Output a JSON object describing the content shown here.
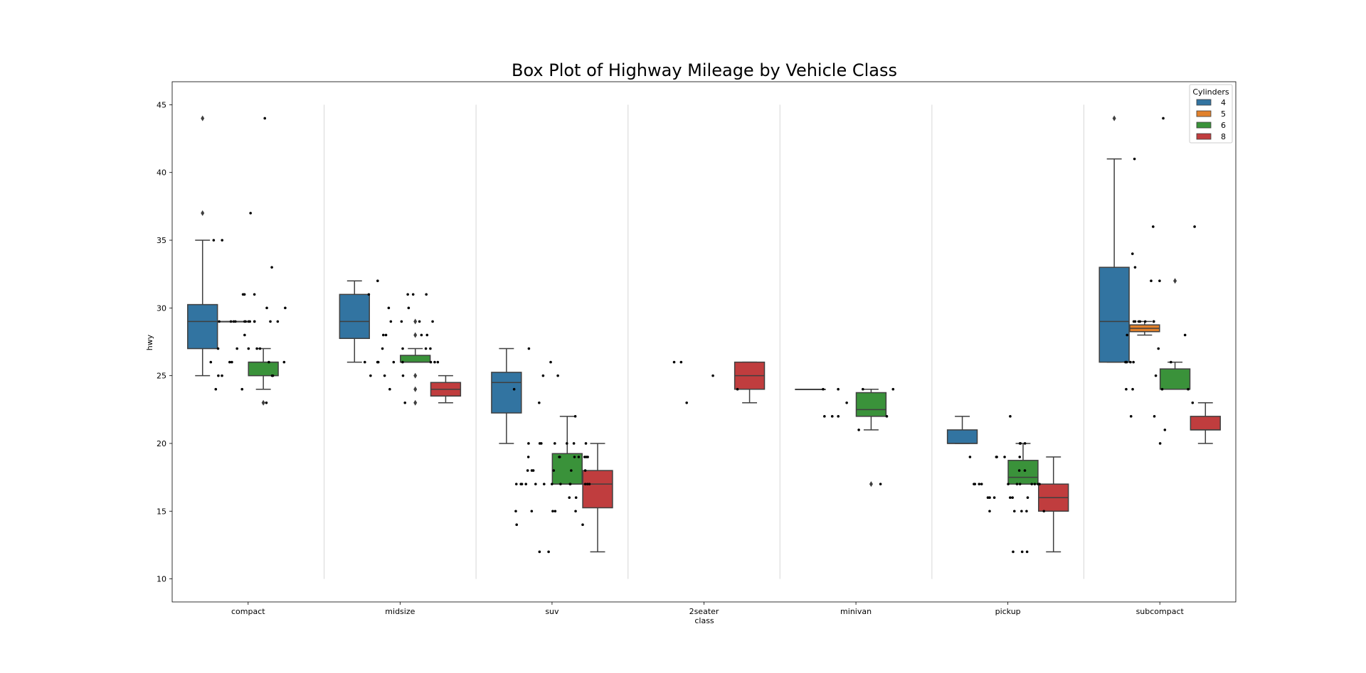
{
  "chart_data": {
    "type": "box",
    "title": "Box Plot of Highway Mileage by Vehicle Class",
    "xlabel": "class",
    "ylabel": "hwy",
    "ylim": [
      8.3,
      46.7
    ],
    "yticks": [
      10,
      15,
      20,
      25,
      30,
      35,
      40,
      45
    ],
    "categories": [
      "compact",
      "midsize",
      "suv",
      "2seater",
      "minivan",
      "pickup",
      "subcompact"
    ],
    "grid": false,
    "legend": {
      "title": "Cylinders",
      "placement": "top-right",
      "entries": [
        {
          "label": "4",
          "color": "#3274a1"
        },
        {
          "label": "5",
          "color": "#e1812c"
        },
        {
          "label": "6",
          "color": "#3a923a"
        },
        {
          "label": "8",
          "color": "#c03d3e"
        }
      ]
    },
    "series": [
      {
        "name": "4",
        "color": "#3274a1",
        "boxes": [
          {
            "category": "compact",
            "q1": 27,
            "median": 29,
            "q3": 30.25,
            "whisker_low": 25,
            "whisker_high": 35,
            "outliers": [
              37,
              44
            ]
          },
          {
            "category": "midsize",
            "q1": 27.75,
            "median": 29,
            "q3": 31,
            "whisker_low": 26,
            "whisker_high": 32,
            "outliers": []
          },
          {
            "category": "suv",
            "q1": 22.25,
            "median": 24.5,
            "q3": 25.25,
            "whisker_low": 20,
            "whisker_high": 27,
            "outliers": []
          },
          {
            "category": "minivan",
            "q1": 24,
            "median": 24,
            "q3": 24,
            "whisker_low": 24,
            "whisker_high": 24,
            "outliers": []
          },
          {
            "category": "pickup",
            "q1": 20,
            "median": 20,
            "q3": 21,
            "whisker_low": 20,
            "whisker_high": 22,
            "outliers": []
          },
          {
            "category": "subcompact",
            "q1": 26,
            "median": 29,
            "q3": 33,
            "whisker_low": 26,
            "whisker_high": 41,
            "outliers": [
              44
            ]
          }
        ]
      },
      {
        "name": "5",
        "color": "#e1812c",
        "boxes": [
          {
            "category": "compact",
            "q1": 29,
            "median": 29,
            "q3": 29,
            "whisker_low": 29,
            "whisker_high": 29,
            "outliers": []
          },
          {
            "category": "subcompact",
            "q1": 28.25,
            "median": 28.5,
            "q3": 28.75,
            "whisker_low": 28,
            "whisker_high": 29,
            "outliers": []
          }
        ]
      },
      {
        "name": "6",
        "color": "#3a923a",
        "boxes": [
          {
            "category": "compact",
            "q1": 25,
            "median": 26,
            "q3": 26,
            "whisker_low": 24,
            "whisker_high": 27,
            "outliers": [
              23
            ]
          },
          {
            "category": "midsize",
            "q1": 26,
            "median": 26,
            "q3": 26.5,
            "whisker_low": 26,
            "whisker_high": 27,
            "outliers": [
              23,
              24,
              25,
              28,
              29
            ]
          },
          {
            "category": "suv",
            "q1": 17,
            "median": 17,
            "q3": 19.25,
            "whisker_low": 17,
            "whisker_high": 22,
            "outliers": []
          },
          {
            "category": "minivan",
            "q1": 22,
            "median": 22.5,
            "q3": 23.75,
            "whisker_low": 21,
            "whisker_high": 24,
            "outliers": [
              17
            ]
          },
          {
            "category": "pickup",
            "q1": 17,
            "median": 17.5,
            "q3": 18.75,
            "whisker_low": 17,
            "whisker_high": 20,
            "outliers": []
          },
          {
            "category": "subcompact",
            "q1": 24,
            "median": 24,
            "q3": 25.5,
            "whisker_low": 24,
            "whisker_high": 26,
            "outliers": [
              32
            ]
          }
        ]
      },
      {
        "name": "8",
        "color": "#c03d3e",
        "boxes": [
          {
            "category": "midsize",
            "q1": 23.5,
            "median": 24,
            "q3": 24.5,
            "whisker_low": 23,
            "whisker_high": 25,
            "outliers": []
          },
          {
            "category": "suv",
            "q1": 15.25,
            "median": 17,
            "q3": 18,
            "whisker_low": 12,
            "whisker_high": 20,
            "outliers": []
          },
          {
            "category": "2seater",
            "q1": 24,
            "median": 25,
            "q3": 26,
            "whisker_low": 23,
            "whisker_high": 26,
            "outliers": []
          },
          {
            "category": "pickup",
            "q1": 15,
            "median": 16,
            "q3": 17,
            "whisker_low": 12,
            "whisker_high": 19,
            "outliers": []
          },
          {
            "category": "subcompact",
            "q1": 21,
            "median": 21,
            "q3": 22,
            "whisker_low": 20,
            "whisker_high": 23,
            "outliers": []
          }
        ]
      }
    ],
    "strip_points": [
      {
        "category": "compact",
        "values": [
          23,
          24,
          24,
          25,
          25,
          25,
          25,
          26,
          26,
          26,
          26,
          26,
          27,
          27,
          27,
          27,
          27,
          28,
          29,
          29,
          29,
          29,
          29,
          29,
          29,
          29,
          29,
          29,
          29,
          29,
          30,
          30,
          31,
          31,
          31,
          33,
          35,
          35,
          37,
          44
        ]
      },
      {
        "category": "midsize",
        "values": [
          23,
          24,
          25,
          25,
          25,
          26,
          26,
          26,
          26,
          26,
          26,
          26,
          26,
          27,
          27,
          27,
          27,
          28,
          28,
          28,
          28,
          29,
          29,
          29,
          29,
          30,
          30,
          31,
          31,
          31,
          31,
          32
        ]
      },
      {
        "category": "suv",
        "values": [
          12,
          12,
          14,
          14,
          15,
          15,
          15,
          15,
          15,
          16,
          16,
          17,
          17,
          17,
          17,
          17,
          17,
          17,
          17,
          17,
          17,
          17,
          17,
          17,
          18,
          18,
          18,
          18,
          18,
          18,
          19,
          19,
          19,
          19,
          19,
          19,
          19,
          19,
          20,
          20,
          20,
          20,
          20,
          20,
          20,
          22,
          23,
          24,
          25,
          25,
          26,
          27
        ]
      },
      {
        "category": "2seater",
        "values": [
          23,
          24,
          25,
          26,
          26
        ]
      },
      {
        "category": "minivan",
        "values": [
          17,
          21,
          22,
          22,
          22,
          22,
          23,
          24,
          24,
          24,
          24
        ]
      },
      {
        "category": "pickup",
        "values": [
          12,
          12,
          12,
          15,
          15,
          15,
          15,
          15,
          16,
          16,
          16,
          16,
          16,
          16,
          17,
          17,
          17,
          17,
          17,
          17,
          17,
          17,
          17,
          17,
          17,
          18,
          18,
          19,
          19,
          19,
          19,
          19,
          20,
          20,
          20,
          22
        ]
      },
      {
        "category": "subcompact",
        "values": [
          20,
          21,
          22,
          22,
          23,
          24,
          24,
          24,
          24,
          25,
          26,
          26,
          26,
          26,
          26,
          27,
          28,
          28,
          29,
          29,
          29,
          29,
          29,
          29,
          29,
          32,
          32,
          33,
          34,
          36,
          36,
          41,
          44
        ]
      }
    ]
  }
}
